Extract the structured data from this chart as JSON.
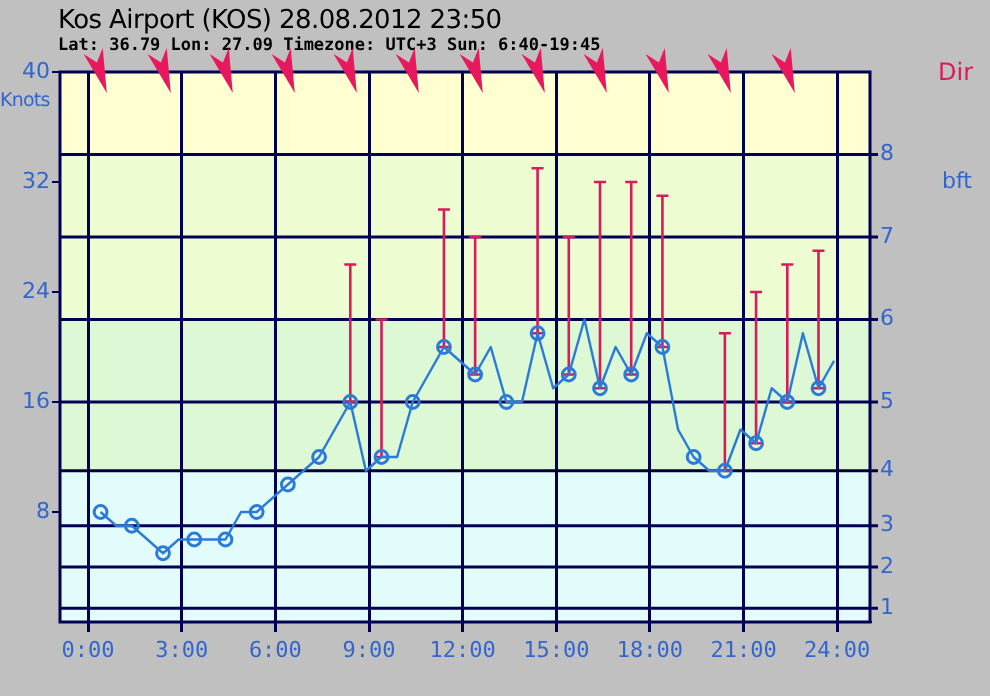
{
  "chart_data": {
    "type": "line",
    "title": "Kos Airport (KOS) 28.08.2012 23:50",
    "subtitle": "Lat: 36.79 Lon: 27.09 Timezone: UTC+3 Sun: 6:40-19:45",
    "ylabel": "Knots",
    "y2label": "bft",
    "annotations": [
      "Dir",
      {
        "text": "1",
        "y": 1
      },
      {
        "text": "2",
        "y": 4
      },
      {
        "text": "3",
        "y": 7
      },
      {
        "text": "4",
        "y": 11
      },
      {
        "text": "5",
        "y": 16
      },
      {
        "text": "6",
        "y": 22
      },
      {
        "text": "7",
        "y": 28
      },
      {
        "text": "8",
        "y": 34
      }
    ],
    "xlim": [
      -0.9,
      25.05
    ],
    "xticks": [
      {
        "value": 0,
        "label": "0:00"
      },
      {
        "value": 3,
        "label": "3:00"
      },
      {
        "value": 6,
        "label": "6:00"
      },
      {
        "value": 9,
        "label": "9:00"
      },
      {
        "value": 12,
        "label": "12:00"
      },
      {
        "value": 15,
        "label": "15:00"
      },
      {
        "value": 18,
        "label": "18:00"
      },
      {
        "value": 21,
        "label": "21:00"
      },
      {
        "value": 24,
        "label": "24:00"
      }
    ],
    "ylim": [
      0,
      40
    ],
    "yticks": [
      8,
      16,
      24,
      32,
      40
    ],
    "grid": "x",
    "legend": false,
    "bands": [
      {
        "axis": "y",
        "from": 0,
        "to": 11,
        "color": "#e2fcfc"
      },
      {
        "axis": "y",
        "from": 11,
        "to": 22,
        "color": "#dcf8d4"
      },
      {
        "axis": "y",
        "from": 22,
        "to": 34,
        "color": "#eefcd2"
      },
      {
        "axis": "y",
        "from": 34,
        "to": 40,
        "color": "#ffffd2"
      }
    ],
    "ref_lines": [
      {
        "axis": "y",
        "value": 1,
        "color": "#000055"
      },
      {
        "axis": "y",
        "value": 4,
        "color": "#000055"
      },
      {
        "axis": "y",
        "value": 7,
        "color": "#000055"
      },
      {
        "axis": "y",
        "value": 11,
        "color": "#000033"
      },
      {
        "axis": "y",
        "value": 16,
        "color": "#000055"
      },
      {
        "axis": "y",
        "value": 22,
        "color": "#000055"
      },
      {
        "axis": "y",
        "value": 28,
        "color": "#000055"
      },
      {
        "axis": "y",
        "value": 34,
        "color": "#000055"
      }
    ],
    "series": [
      {
        "type": "line",
        "color": "#2a7ad8",
        "marker": "none",
        "x": [
          0.4,
          0.9,
          1.4,
          2.4,
          2.9,
          3.4,
          4.4,
          4.9,
          5.4,
          6.4,
          7.4,
          8.4,
          8.9,
          9.4,
          9.9,
          10.4,
          11.4,
          12.4,
          12.9,
          13.4,
          13.9,
          14.4,
          14.9,
          15.4,
          15.9,
          16.4,
          16.9,
          17.4,
          17.9,
          18.4,
          18.9,
          19.4,
          19.9,
          20.4,
          20.9,
          21.4,
          21.9,
          22.4,
          22.9,
          23.4,
          23.9
        ],
        "values": [
          8,
          7,
          7,
          5,
          6,
          6,
          6,
          8,
          8,
          10,
          12,
          16,
          11,
          12,
          12,
          16,
          20,
          18,
          20,
          16,
          16,
          21,
          17,
          18,
          22,
          17,
          20,
          18,
          21,
          20,
          14,
          12,
          11,
          11,
          14,
          13,
          17,
          16,
          21,
          17,
          19
        ]
      },
      {
        "type": "scatter",
        "color": "#2a7ad8",
        "marker": "circle",
        "x": [
          0.4,
          1.4,
          2.4,
          3.4,
          4.4,
          5.4,
          6.4,
          7.4,
          8.4,
          9.4,
          10.4,
          11.4,
          12.4,
          13.4,
          14.4,
          15.4,
          16.4,
          17.4,
          18.4,
          19.4,
          20.4,
          21.4,
          22.4,
          23.4
        ],
        "values": [
          8,
          7,
          5,
          6,
          6,
          8,
          10,
          12,
          16,
          12,
          16,
          20,
          18,
          16,
          21,
          18,
          17,
          18,
          20,
          12,
          11,
          13,
          16,
          17
        ],
        "errors": [
          null,
          null,
          null,
          null,
          null,
          null,
          null,
          null,
          [
            16,
            26
          ],
          [
            12,
            22
          ],
          null,
          [
            20,
            30
          ],
          [
            18,
            28
          ],
          null,
          [
            21,
            33
          ],
          [
            18,
            28
          ],
          [
            17,
            32
          ],
          [
            18,
            32
          ],
          [
            20,
            31
          ],
          null,
          [
            11,
            21
          ],
          [
            13,
            24
          ],
          [
            16,
            26
          ],
          [
            17,
            27
          ]
        ]
      }
    ]
  }
}
